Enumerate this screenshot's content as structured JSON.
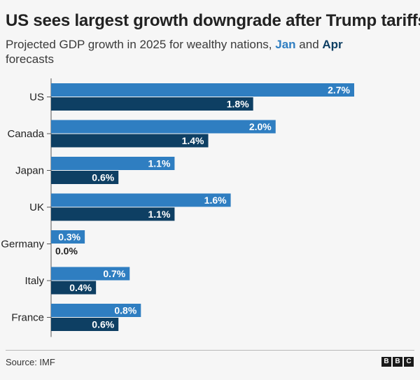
{
  "title": "US sees largest growth downgrade after Trump tariffs",
  "subtitle": {
    "prefix": "Projected GDP growth in 2025 for wealthy nations,",
    "jan": "Jan",
    "and": "and",
    "apr": "Apr",
    "suffix": "forecasts"
  },
  "colors": {
    "jan": "#2f7ec1",
    "apr": "#0e3f63",
    "background": "#f6f6f6"
  },
  "chart_data": {
    "type": "bar",
    "orientation": "horizontal",
    "categories": [
      "US",
      "Canada",
      "Japan",
      "UK",
      "Germany",
      "Italy",
      "France"
    ],
    "series": [
      {
        "name": "Jan",
        "values": [
          2.7,
          2.0,
          1.1,
          1.6,
          0.3,
          0.7,
          0.8
        ],
        "labels": [
          "2.7%",
          "2.0%",
          "1.1%",
          "1.6%",
          "0.3%",
          "0.7%",
          "0.8%"
        ]
      },
      {
        "name": "Apr",
        "values": [
          1.8,
          1.4,
          0.6,
          1.1,
          0.0,
          0.4,
          0.6
        ],
        "labels": [
          "1.8%",
          "1.4%",
          "0.6%",
          "1.1%",
          "0.0%",
          "0.4%",
          "0.6%"
        ]
      }
    ],
    "title": "US sees largest growth downgrade after Trump tariffs",
    "xlabel": "",
    "ylabel": "",
    "xlim": [
      0,
      2.7
    ],
    "grid": false,
    "legend": "in subtitle"
  },
  "footer": {
    "source": "Source: IMF",
    "logo": [
      "B",
      "B",
      "C"
    ]
  }
}
